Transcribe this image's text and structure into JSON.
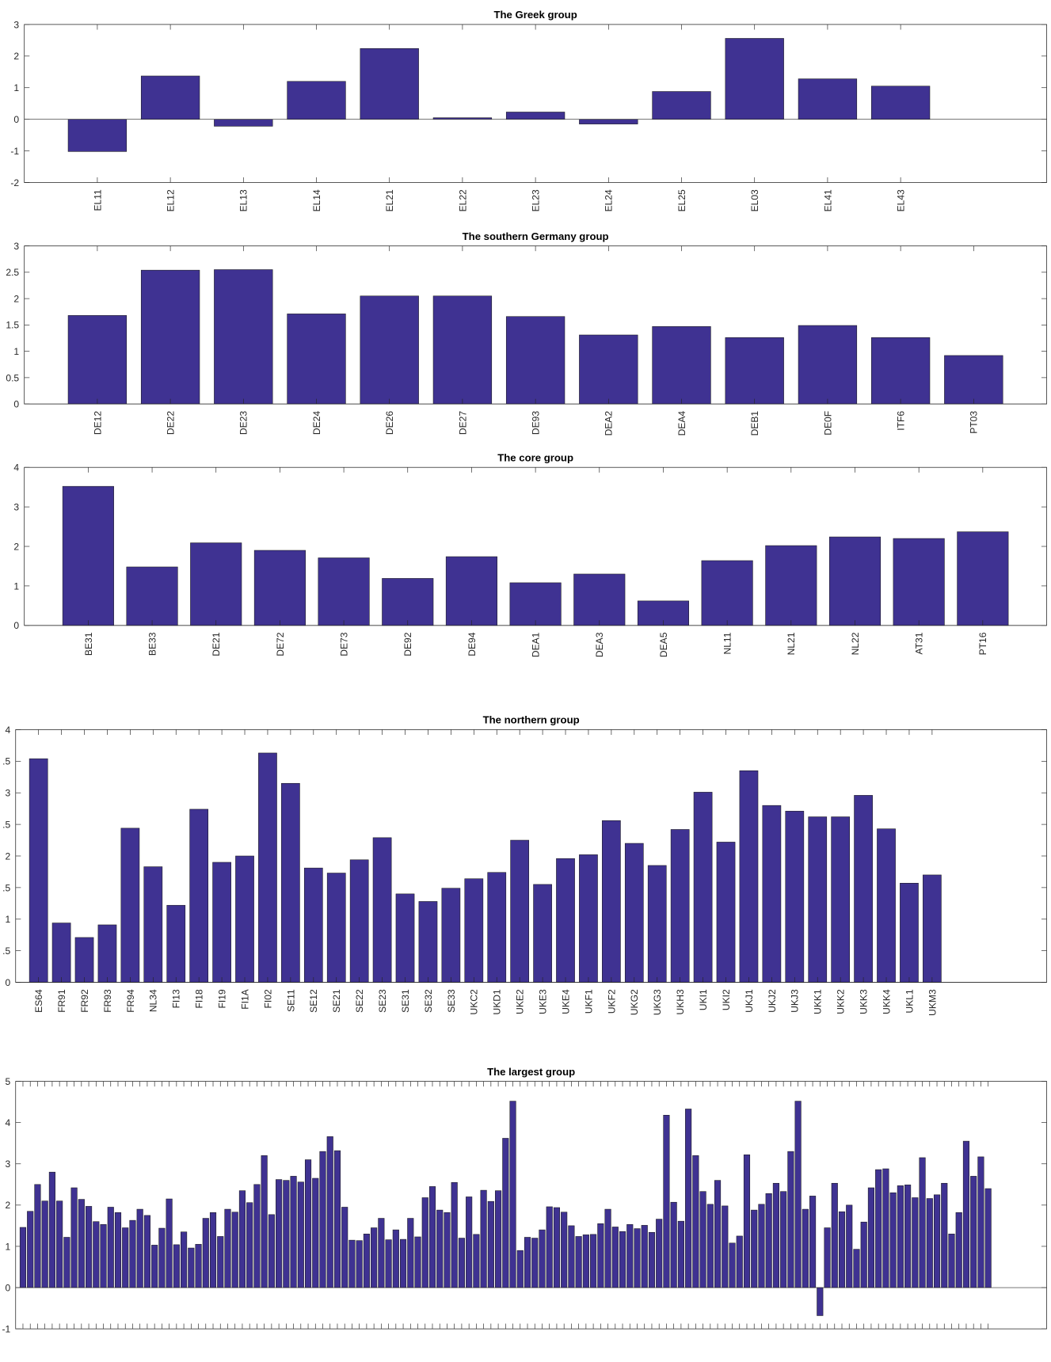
{
  "chart_data": [
    {
      "type": "bar",
      "title": "The Greek group",
      "categories": [
        "EL11",
        "EL12",
        "EL13",
        "EL14",
        "EL21",
        "EL22",
        "EL23",
        "EL24",
        "EL25",
        "EL03",
        "EL41",
        "EL43"
      ],
      "values": [
        -1.02,
        1.37,
        -0.22,
        1.2,
        2.24,
        0.05,
        0.23,
        -0.15,
        0.88,
        2.56,
        1.28,
        1.05
      ],
      "color": "#3f3292",
      "ylim": [
        -2,
        3
      ],
      "yticks": [
        -2,
        -1,
        0,
        1,
        2,
        3
      ]
    },
    {
      "type": "bar",
      "title": "The southern Germany group",
      "categories": [
        "DE12",
        "DE22",
        "DE23",
        "DE24",
        "DE26",
        "DE27",
        "DE93",
        "DEA2",
        "DEA4",
        "DEB1",
        "DE0F",
        "ITF6",
        "PT03"
      ],
      "values": [
        1.68,
        2.54,
        2.55,
        1.71,
        2.05,
        2.05,
        1.66,
        1.31,
        1.47,
        1.26,
        1.49,
        1.26,
        0.92
      ],
      "color": "#3f3292",
      "ylim": [
        0,
        3
      ],
      "yticks": [
        0,
        0.5,
        1,
        1.5,
        2,
        2.5,
        3
      ]
    },
    {
      "type": "bar",
      "title": "The core group",
      "categories": [
        "BE31",
        "BE33",
        "DE21",
        "DE72",
        "DE73",
        "DE92",
        "DE94",
        "DEA1",
        "DEA3",
        "DEA5",
        "NL11",
        "NL21",
        "NL22",
        "AT31",
        "PT16"
      ],
      "values": [
        3.52,
        1.48,
        2.09,
        1.9,
        1.71,
        1.19,
        1.74,
        1.08,
        1.3,
        0.62,
        1.64,
        2.02,
        2.24,
        2.2,
        2.37
      ],
      "color": "#3f3292",
      "ylim": [
        0,
        4
      ],
      "yticks": [
        0,
        1,
        2,
        3,
        4
      ]
    },
    {
      "type": "bar",
      "title": "The northern group",
      "categories": [
        "ES64",
        "FR91",
        "FR92",
        "FR93",
        "FR94",
        "NL34",
        "FI13",
        "FI18",
        "FI19",
        "FI1A",
        "FI02",
        "SE11",
        "SE12",
        "SE21",
        "SE22",
        "SE23",
        "SE31",
        "SE32",
        "SE33",
        "UKC2",
        "UKD1",
        "UKE2",
        "UKE3",
        "UKE4",
        "UKF1",
        "UKF2",
        "UKG2",
        "UKG3",
        "UKH3",
        "UKI1",
        "UKI2",
        "UKJ1",
        "UKJ2",
        "UKJ3",
        "UKK1",
        "UKK2",
        "UKK3",
        "UKK4",
        "UKL1",
        "UKM3"
      ],
      "values": [
        3.54,
        0.94,
        0.71,
        0.91,
        2.44,
        1.83,
        1.22,
        2.74,
        1.9,
        2.0,
        3.63,
        3.15,
        1.81,
        1.73,
        1.94,
        2.29,
        1.4,
        1.28,
        1.49,
        1.64,
        1.74,
        2.25,
        1.55,
        1.96,
        2.02,
        2.56,
        2.2,
        1.85,
        2.42,
        3.01,
        2.22,
        3.35,
        2.8,
        2.71,
        2.62,
        2.62,
        2.96,
        2.43,
        1.57,
        1.7
      ],
      "color": "#3f3292",
      "ylim": [
        0,
        4
      ],
      "yticks": [
        0,
        {
          "value": 0.5,
          "label": ".5"
        },
        1,
        {
          "value": 1.5,
          "label": ".5"
        },
        2,
        {
          "value": 2.5,
          "label": ".5"
        },
        3,
        {
          "value": 3.5,
          "label": ".5"
        },
        4
      ]
    },
    {
      "type": "bar",
      "title": "The largest group",
      "categories": [
        null,
        null,
        null,
        null,
        null,
        null,
        null,
        null,
        null,
        null,
        null,
        null,
        null,
        null,
        null,
        null,
        null,
        null,
        null,
        null,
        null,
        null,
        null,
        null,
        null,
        null,
        null,
        null,
        null,
        null,
        null,
        null,
        null,
        null,
        null,
        null,
        null,
        null,
        null,
        null,
        null,
        null,
        null,
        null,
        null,
        null,
        null,
        null,
        null,
        null,
        null,
        null,
        null,
        null,
        null,
        null,
        null,
        null,
        null,
        null,
        null,
        null,
        null,
        null,
        null,
        null,
        null,
        null,
        null,
        null,
        null,
        null,
        null,
        null,
        null,
        null,
        null,
        null,
        null,
        null,
        null,
        null,
        null,
        null,
        null,
        null,
        null,
        null,
        null,
        null,
        null,
        null,
        null,
        null,
        null,
        null,
        null,
        null,
        null,
        null,
        null,
        null,
        null,
        null,
        null,
        null,
        null,
        null,
        null,
        null,
        null,
        null,
        null,
        null,
        null,
        null,
        null,
        null,
        null,
        null,
        null,
        null,
        null,
        null,
        null,
        null,
        null,
        null,
        null,
        null,
        null,
        null,
        null
      ],
      "values": [
        1.46,
        1.85,
        2.5,
        2.1,
        2.8,
        2.1,
        1.22,
        2.42,
        2.14,
        1.97,
        1.6,
        1.53,
        1.95,
        1.82,
        1.45,
        1.63,
        1.9,
        1.75,
        1.03,
        1.44,
        2.15,
        1.04,
        1.35,
        0.96,
        1.05,
        1.68,
        1.82,
        1.24,
        1.9,
        1.83,
        2.35,
        2.06,
        2.5,
        3.2,
        1.77,
        2.62,
        2.6,
        2.7,
        2.56,
        3.1,
        2.65,
        3.3,
        3.66,
        3.32,
        1.95,
        1.15,
        1.14,
        1.3,
        1.45,
        1.68,
        1.16,
        1.4,
        1.17,
        1.68,
        1.23,
        2.18,
        2.45,
        1.88,
        1.82,
        2.55,
        1.2,
        2.2,
        1.29,
        2.36,
        2.09,
        2.35,
        3.62,
        4.52,
        0.9,
        1.22,
        1.2,
        1.4,
        1.96,
        1.94,
        1.83,
        1.5,
        1.24,
        1.28,
        1.29,
        1.55,
        1.9,
        1.47,
        1.36,
        1.53,
        1.43,
        1.51,
        1.34,
        1.66,
        4.18,
        2.07,
        1.61,
        4.33,
        3.2,
        2.33,
        2.02,
        2.6,
        1.98,
        1.08,
        1.25,
        3.22,
        1.88,
        2.02,
        2.28,
        2.53,
        2.33,
        3.3,
        4.52,
        1.9,
        2.22,
        -0.68,
        1.45,
        2.53,
        1.84,
        2.0,
        0.93,
        1.59,
        2.42,
        2.86,
        2.88,
        2.3,
        2.47,
        2.49,
        2.18,
        3.15,
        2.16,
        2.25,
        2.53,
        1.3,
        1.82,
        3.55,
        2.7,
        3.17,
        2.4
      ],
      "color": "#3f3292",
      "ylim": [
        -1,
        5
      ],
      "yticks": [
        -1,
        0,
        1,
        2,
        3,
        4,
        5
      ]
    }
  ]
}
